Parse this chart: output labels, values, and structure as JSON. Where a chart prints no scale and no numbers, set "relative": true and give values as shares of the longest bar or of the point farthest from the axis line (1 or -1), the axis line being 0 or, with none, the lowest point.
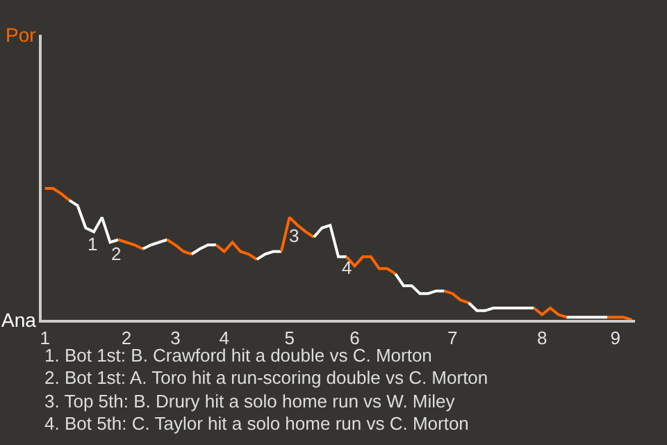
{
  "chart_data": {
    "type": "line",
    "relative": true,
    "categories": [
      "1",
      null,
      null,
      null,
      null,
      null,
      null,
      null,
      null,
      null,
      "2",
      null,
      null,
      null,
      null,
      null,
      "3",
      null,
      null,
      null,
      null,
      null,
      "4",
      null,
      null,
      null,
      null,
      null,
      null,
      null,
      "5",
      null,
      null,
      null,
      null,
      null,
      null,
      null,
      "6",
      null,
      null,
      null,
      null,
      null,
      null,
      null,
      null,
      null,
      null,
      null,
      "7",
      null,
      null,
      null,
      null,
      null,
      null,
      null,
      null,
      null,
      null,
      "8",
      null,
      null,
      null,
      null,
      null,
      null,
      null,
      null,
      "9",
      null,
      null
    ],
    "marker": "none",
    "line_style": "solid",
    "series": [
      {
        "color": "#ff6600",
        "values": [
          1,
          1,
          0.96,
          0.91,
          null,
          null,
          null,
          null,
          null,
          null,
          null,
          null,
          null,
          null,
          null,
          null,
          null,
          null,
          null,
          null,
          null,
          null,
          null,
          null,
          null,
          null,
          null,
          null,
          null,
          null,
          null,
          null,
          null,
          null,
          null,
          null,
          null,
          null,
          null,
          null,
          null,
          null,
          null,
          null,
          null,
          null,
          null,
          null,
          null,
          null,
          null,
          null,
          null,
          null,
          null,
          null,
          null,
          null,
          null,
          null,
          null,
          null,
          null,
          null,
          null,
          null,
          null,
          null,
          null,
          null,
          null,
          null,
          null
        ]
      },
      {
        "color": "#ffffff",
        "values": [
          null,
          null,
          null,
          0.91,
          0.87,
          0.7,
          0.67,
          0.78,
          0.59,
          0.61,
          null,
          null,
          null,
          null,
          null,
          null,
          null,
          null,
          null,
          null,
          null,
          null,
          null,
          null,
          null,
          null,
          null,
          null,
          null,
          null,
          null,
          null,
          null,
          null,
          null,
          null,
          null,
          null,
          null,
          null,
          null,
          null,
          null,
          null,
          null,
          null,
          null,
          null,
          null,
          null,
          null,
          null,
          null,
          null,
          null,
          null,
          null,
          null,
          null,
          null,
          null,
          null,
          null,
          null,
          null,
          null,
          null,
          null,
          null,
          null,
          null,
          null,
          null
        ]
      },
      {
        "color": "#ff6600",
        "values": [
          null,
          null,
          null,
          null,
          null,
          null,
          null,
          null,
          null,
          0.61,
          0.59,
          0.57,
          0.54,
          null,
          null,
          null,
          null,
          null,
          null,
          null,
          null,
          null,
          null,
          null,
          null,
          null,
          null,
          null,
          null,
          null,
          null,
          null,
          null,
          null,
          null,
          null,
          null,
          null,
          null,
          null,
          null,
          null,
          null,
          null,
          null,
          null,
          null,
          null,
          null,
          null,
          null,
          null,
          null,
          null,
          null,
          null,
          null,
          null,
          null,
          null,
          null,
          null,
          null,
          null,
          null,
          null,
          null,
          null,
          null,
          null,
          null,
          null,
          null
        ]
      },
      {
        "color": "#ffffff",
        "values": [
          null,
          null,
          null,
          null,
          null,
          null,
          null,
          null,
          null,
          null,
          null,
          null,
          0.54,
          0.57,
          0.59,
          0.61,
          null,
          null,
          null,
          null,
          null,
          null,
          null,
          null,
          null,
          null,
          null,
          null,
          null,
          null,
          null,
          null,
          null,
          null,
          null,
          null,
          null,
          null,
          null,
          null,
          null,
          null,
          null,
          null,
          null,
          null,
          null,
          null,
          null,
          null,
          null,
          null,
          null,
          null,
          null,
          null,
          null,
          null,
          null,
          null,
          null,
          null,
          null,
          null,
          null,
          null,
          null,
          null,
          null,
          null,
          null,
          null,
          null
        ]
      },
      {
        "color": "#ff6600",
        "values": [
          null,
          null,
          null,
          null,
          null,
          null,
          null,
          null,
          null,
          null,
          null,
          null,
          null,
          null,
          null,
          0.61,
          0.57,
          0.52,
          0.5,
          null,
          null,
          null,
          null,
          null,
          null,
          null,
          null,
          null,
          null,
          null,
          null,
          null,
          null,
          null,
          null,
          null,
          null,
          null,
          null,
          null,
          null,
          null,
          null,
          null,
          null,
          null,
          null,
          null,
          null,
          null,
          null,
          null,
          null,
          null,
          null,
          null,
          null,
          null,
          null,
          null,
          null,
          null,
          null,
          null,
          null,
          null,
          null,
          null,
          null,
          null,
          null,
          null,
          null
        ]
      },
      {
        "color": "#ffffff",
        "values": [
          null,
          null,
          null,
          null,
          null,
          null,
          null,
          null,
          null,
          null,
          null,
          null,
          null,
          null,
          null,
          null,
          null,
          null,
          0.5,
          0.54,
          0.57,
          0.57,
          null,
          null,
          null,
          null,
          null,
          null,
          null,
          null,
          null,
          null,
          null,
          null,
          null,
          null,
          null,
          null,
          null,
          null,
          null,
          null,
          null,
          null,
          null,
          null,
          null,
          null,
          null,
          null,
          null,
          null,
          null,
          null,
          null,
          null,
          null,
          null,
          null,
          null,
          null,
          null,
          null,
          null,
          null,
          null,
          null,
          null,
          null,
          null,
          null,
          null,
          null
        ]
      },
      {
        "color": "#ff6600",
        "values": [
          null,
          null,
          null,
          null,
          null,
          null,
          null,
          null,
          null,
          null,
          null,
          null,
          null,
          null,
          null,
          null,
          null,
          null,
          null,
          null,
          null,
          0.57,
          0.52,
          0.59,
          0.52,
          0.5,
          0.46,
          null,
          null,
          null,
          null,
          null,
          null,
          null,
          null,
          null,
          null,
          null,
          null,
          null,
          null,
          null,
          null,
          null,
          null,
          null,
          null,
          null,
          null,
          null,
          null,
          null,
          null,
          null,
          null,
          null,
          null,
          null,
          null,
          null,
          null,
          null,
          null,
          null,
          null,
          null,
          null,
          null,
          null,
          null,
          null,
          null,
          null
        ]
      },
      {
        "color": "#ffffff",
        "values": [
          null,
          null,
          null,
          null,
          null,
          null,
          null,
          null,
          null,
          null,
          null,
          null,
          null,
          null,
          null,
          null,
          null,
          null,
          null,
          null,
          null,
          null,
          null,
          null,
          null,
          null,
          0.46,
          0.5,
          0.52,
          0.52,
          null,
          null,
          null,
          null,
          null,
          null,
          null,
          null,
          null,
          null,
          null,
          null,
          null,
          null,
          null,
          null,
          null,
          null,
          null,
          null,
          null,
          null,
          null,
          null,
          null,
          null,
          null,
          null,
          null,
          null,
          null,
          null,
          null,
          null,
          null,
          null,
          null,
          null,
          null,
          null,
          null,
          null,
          null
        ]
      },
      {
        "color": "#ff6600",
        "values": [
          null,
          null,
          null,
          null,
          null,
          null,
          null,
          null,
          null,
          null,
          null,
          null,
          null,
          null,
          null,
          null,
          null,
          null,
          null,
          null,
          null,
          null,
          null,
          null,
          null,
          null,
          null,
          null,
          null,
          0.52,
          0.78,
          0.72,
          0.67,
          0.63,
          null,
          null,
          null,
          null,
          null,
          null,
          null,
          null,
          null,
          null,
          null,
          null,
          null,
          null,
          null,
          null,
          null,
          null,
          null,
          null,
          null,
          null,
          null,
          null,
          null,
          null,
          null,
          null,
          null,
          null,
          null,
          null,
          null,
          null,
          null,
          null,
          null,
          null,
          null
        ]
      },
      {
        "color": "#ffffff",
        "values": [
          null,
          null,
          null,
          null,
          null,
          null,
          null,
          null,
          null,
          null,
          null,
          null,
          null,
          null,
          null,
          null,
          null,
          null,
          null,
          null,
          null,
          null,
          null,
          null,
          null,
          null,
          null,
          null,
          null,
          null,
          null,
          null,
          null,
          0.63,
          0.7,
          0.72,
          0.48,
          0.48,
          null,
          null,
          null,
          null,
          null,
          null,
          null,
          null,
          null,
          null,
          null,
          null,
          null,
          null,
          null,
          null,
          null,
          null,
          null,
          null,
          null,
          null,
          null,
          null,
          null,
          null,
          null,
          null,
          null,
          null,
          null,
          null,
          null,
          null,
          null
        ]
      },
      {
        "color": "#ff6600",
        "values": [
          null,
          null,
          null,
          null,
          null,
          null,
          null,
          null,
          null,
          null,
          null,
          null,
          null,
          null,
          null,
          null,
          null,
          null,
          null,
          null,
          null,
          null,
          null,
          null,
          null,
          null,
          null,
          null,
          null,
          null,
          null,
          null,
          null,
          null,
          null,
          null,
          null,
          0.48,
          0.41,
          0.48,
          0.48,
          0.39,
          0.39,
          0.35,
          null,
          null,
          null,
          null,
          null,
          null,
          null,
          null,
          null,
          null,
          null,
          null,
          null,
          null,
          null,
          null,
          null,
          null,
          null,
          null,
          null,
          null,
          null,
          null,
          null,
          null,
          null,
          null,
          null
        ]
      },
      {
        "color": "#ffffff",
        "values": [
          null,
          null,
          null,
          null,
          null,
          null,
          null,
          null,
          null,
          null,
          null,
          null,
          null,
          null,
          null,
          null,
          null,
          null,
          null,
          null,
          null,
          null,
          null,
          null,
          null,
          null,
          null,
          null,
          null,
          null,
          null,
          null,
          null,
          null,
          null,
          null,
          null,
          null,
          null,
          null,
          null,
          null,
          null,
          0.35,
          0.26,
          0.26,
          0.2,
          0.2,
          0.22,
          0.22,
          null,
          null,
          null,
          null,
          null,
          null,
          null,
          null,
          null,
          null,
          null,
          null,
          null,
          null,
          null,
          null,
          null,
          null,
          null,
          null,
          null,
          null,
          null
        ]
      },
      {
        "color": "#ff6600",
        "values": [
          null,
          null,
          null,
          null,
          null,
          null,
          null,
          null,
          null,
          null,
          null,
          null,
          null,
          null,
          null,
          null,
          null,
          null,
          null,
          null,
          null,
          null,
          null,
          null,
          null,
          null,
          null,
          null,
          null,
          null,
          null,
          null,
          null,
          null,
          null,
          null,
          null,
          null,
          null,
          null,
          null,
          null,
          null,
          null,
          null,
          null,
          null,
          null,
          null,
          0.22,
          0.2,
          0.15,
          0.13,
          null,
          null,
          null,
          null,
          null,
          null,
          null,
          null,
          null,
          null,
          null,
          null,
          null,
          null,
          null,
          null,
          null,
          null,
          null,
          null
        ]
      },
      {
        "color": "#ffffff",
        "values": [
          null,
          null,
          null,
          null,
          null,
          null,
          null,
          null,
          null,
          null,
          null,
          null,
          null,
          null,
          null,
          null,
          null,
          null,
          null,
          null,
          null,
          null,
          null,
          null,
          null,
          null,
          null,
          null,
          null,
          null,
          null,
          null,
          null,
          null,
          null,
          null,
          null,
          null,
          null,
          null,
          null,
          null,
          null,
          null,
          null,
          null,
          null,
          null,
          null,
          null,
          null,
          null,
          0.13,
          0.07,
          0.07,
          0.09,
          0.09,
          0.09,
          0.09,
          0.09,
          0.09,
          null,
          null,
          null,
          null,
          null,
          null,
          null,
          null,
          null,
          null,
          null,
          null
        ]
      },
      {
        "color": "#ff6600",
        "values": [
          null,
          null,
          null,
          null,
          null,
          null,
          null,
          null,
          null,
          null,
          null,
          null,
          null,
          null,
          null,
          null,
          null,
          null,
          null,
          null,
          null,
          null,
          null,
          null,
          null,
          null,
          null,
          null,
          null,
          null,
          null,
          null,
          null,
          null,
          null,
          null,
          null,
          null,
          null,
          null,
          null,
          null,
          null,
          null,
          null,
          null,
          null,
          null,
          null,
          null,
          null,
          null,
          null,
          null,
          null,
          null,
          null,
          null,
          null,
          null,
          0.09,
          0.04,
          0.09,
          0.04,
          0.02,
          null,
          null,
          null,
          null,
          null,
          null,
          null,
          null
        ]
      },
      {
        "color": "#ffffff",
        "values": [
          null,
          null,
          null,
          null,
          null,
          null,
          null,
          null,
          null,
          null,
          null,
          null,
          null,
          null,
          null,
          null,
          null,
          null,
          null,
          null,
          null,
          null,
          null,
          null,
          null,
          null,
          null,
          null,
          null,
          null,
          null,
          null,
          null,
          null,
          null,
          null,
          null,
          null,
          null,
          null,
          null,
          null,
          null,
          null,
          null,
          null,
          null,
          null,
          null,
          null,
          null,
          null,
          null,
          null,
          null,
          null,
          null,
          null,
          null,
          null,
          null,
          null,
          null,
          null,
          0.02,
          0.02,
          0.02,
          0.02,
          0.02,
          0.02,
          null,
          null,
          null
        ]
      },
      {
        "color": "#ff6600",
        "values": [
          null,
          null,
          null,
          null,
          null,
          null,
          null,
          null,
          null,
          null,
          null,
          null,
          null,
          null,
          null,
          null,
          null,
          null,
          null,
          null,
          null,
          null,
          null,
          null,
          null,
          null,
          null,
          null,
          null,
          null,
          null,
          null,
          null,
          null,
          null,
          null,
          null,
          null,
          null,
          null,
          null,
          null,
          null,
          null,
          null,
          null,
          null,
          null,
          null,
          null,
          null,
          null,
          null,
          null,
          null,
          null,
          null,
          null,
          null,
          null,
          null,
          null,
          null,
          null,
          null,
          null,
          null,
          null,
          null,
          0.02,
          0.02,
          0.02,
          0
        ]
      }
    ],
    "annotations": [
      "Por",
      "Ana",
      "1",
      "2",
      "3",
      "4",
      "1. Bot 1st: B. Crawford hit a double vs C. Morton",
      "2. Bot 1st: A. Toro hit a run-scoring double vs C. Morton",
      "3. Top 5th: B. Drury hit a solo home run vs W. Miley",
      "4. Bot 5th: C. Taylor hit a solo home run vs C. Morton"
    ]
  }
}
